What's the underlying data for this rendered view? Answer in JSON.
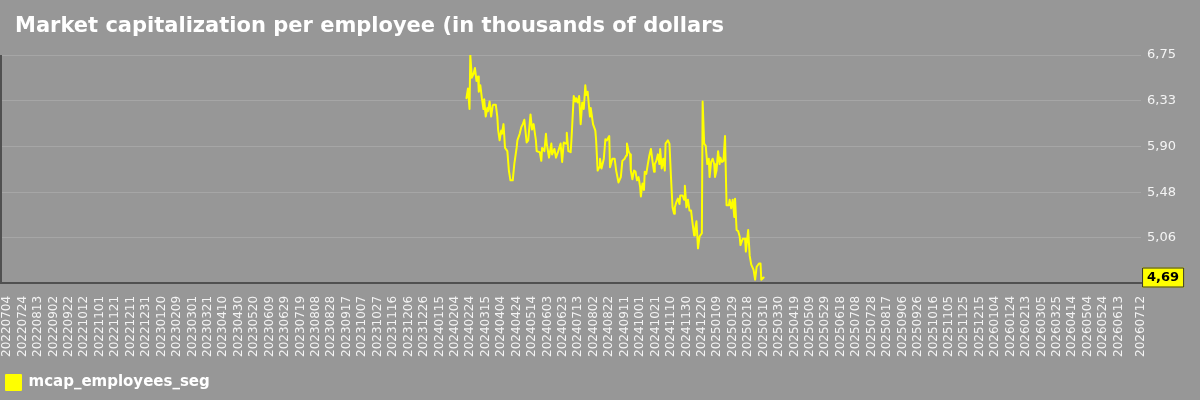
{
  "chart_data": {
    "type": "line",
    "title": "Market capitalization per employee (in thousands of dollars",
    "series": [
      {
        "name": "mcap_employees_seg",
        "color": "#ffff00",
        "x": [
          "2024-02-19",
          "2024-02-21",
          "2024-02-23",
          "2024-02-24",
          "2024-02-26",
          "2024-02-28",
          "2024-03-01",
          "2024-03-03",
          "2024-03-05",
          "2024-03-06",
          "2024-03-08",
          "2024-03-10",
          "2024-03-12",
          "2024-03-13",
          "2024-03-15",
          "2024-03-17",
          "2024-03-18",
          "2024-03-20",
          "2024-03-22",
          "2024-03-24",
          "2024-03-25",
          "2024-03-28",
          "2024-03-30",
          "2024-03-31",
          "2024-04-02",
          "2024-04-04",
          "2024-04-05",
          "2024-04-07",
          "2024-04-09",
          "2024-04-12",
          "2024-04-14",
          "2024-04-16",
          "2024-04-19",
          "2024-04-21",
          "2024-04-24",
          "2024-04-25",
          "2024-04-28",
          "2024-04-30",
          "2024-05-02",
          "2024-05-04",
          "2024-05-07",
          "2024-05-09",
          "2024-05-12",
          "2024-05-14",
          "2024-05-16",
          "2024-05-19",
          "2024-05-20",
          "2024-05-24",
          "2024-05-26",
          "2024-05-27",
          "2024-05-30",
          "2024-06-01",
          "2024-06-02",
          "2024-06-05",
          "2024-06-08",
          "2024-06-09",
          "2024-06-12",
          "2024-06-14",
          "2024-06-17",
          "2024-06-20",
          "2024-06-22",
          "2024-06-24",
          "2024-06-27",
          "2024-06-28",
          "2024-06-30",
          "2024-07-03",
          "2024-07-04",
          "2024-07-07",
          "2024-07-09",
          "2024-07-10",
          "2024-07-12",
          "2024-07-14",
          "2024-07-16",
          "2024-07-18",
          "2024-07-20",
          "2024-07-22",
          "2024-07-23",
          "2024-07-25",
          "2024-07-28",
          "2024-07-29",
          "2024-08-01",
          "2024-08-04",
          "2024-08-05",
          "2024-08-07",
          "2024-08-09",
          "2024-08-10",
          "2024-08-12",
          "2024-08-15",
          "2024-08-17",
          "2024-08-19",
          "2024-08-22",
          "2024-08-23",
          "2024-08-26",
          "2024-08-29",
          "2024-08-31",
          "2024-09-03",
          "2024-09-06",
          "2024-09-08",
          "2024-09-11",
          "2024-09-13",
          "2024-09-14",
          "2024-09-16",
          "2024-09-18",
          "2024-09-19",
          "2024-09-21",
          "2024-09-23",
          "2024-09-25",
          "2024-09-27",
          "2024-09-29",
          "2024-10-01",
          "2024-10-02",
          "2024-10-04",
          "2024-10-06",
          "2024-10-07",
          "2024-10-09",
          "2024-10-11",
          "2024-10-13",
          "2024-10-15",
          "2024-10-17",
          "2024-10-19",
          "2024-10-20",
          "2024-10-22",
          "2024-10-24",
          "2024-10-26",
          "2024-10-27",
          "2024-10-29",
          "2024-10-31",
          "2024-11-02",
          "2024-11-03",
          "2024-11-06",
          "2024-11-08",
          "2024-11-10",
          "2024-11-12",
          "2024-11-14",
          "2024-11-15",
          "2024-11-17",
          "2024-11-19",
          "2024-11-21",
          "2024-11-22",
          "2024-11-25",
          "2024-11-27",
          "2024-11-28",
          "2024-11-30",
          "2024-12-02",
          "2024-12-04",
          "2024-12-06",
          "2024-12-08",
          "2024-12-10",
          "2024-12-11",
          "2024-12-13",
          "2024-12-15",
          "2024-12-17",
          "2024-12-18",
          "2024-12-20",
          "2024-12-21",
          "2024-12-23",
          "2024-12-25",
          "2024-12-27",
          "2024-12-29",
          "2024-12-30",
          "2025-01-01",
          "2025-01-03",
          "2025-01-05",
          "2025-01-06",
          "2025-01-08",
          "2025-01-10",
          "2025-01-12",
          "2025-01-13",
          "2025-01-15",
          "2025-01-17",
          "2025-01-19",
          "2025-01-21",
          "2025-01-24",
          "2025-01-25",
          "2025-01-27",
          "2025-01-29",
          "2025-01-31",
          "2025-02-01",
          "2025-02-03",
          "2025-02-05",
          "2025-02-07",
          "2025-02-08",
          "2025-02-11",
          "2025-02-14",
          "2025-02-15",
          "2025-02-18",
          "2025-02-20",
          "2025-02-22",
          "2025-02-25",
          "2025-02-27",
          "2025-03-01",
          "2025-03-04",
          "2025-03-06",
          "2025-03-07",
          "2025-03-10"
        ],
        "values": [
          6.35,
          6.44,
          6.25,
          6.75,
          6.54,
          6.57,
          6.63,
          6.51,
          6.55,
          6.41,
          6.47,
          6.35,
          6.25,
          6.34,
          6.18,
          6.26,
          6.23,
          6.32,
          6.18,
          6.28,
          6.29,
          6.29,
          6.18,
          6.06,
          5.96,
          6.05,
          6.02,
          6.11,
          5.89,
          5.86,
          5.68,
          5.59,
          5.59,
          5.74,
          5.89,
          5.96,
          6.02,
          6.08,
          6.11,
          6.15,
          5.94,
          5.96,
          6.2,
          6.06,
          6.11,
          5.96,
          5.86,
          5.85,
          5.77,
          5.89,
          5.86,
          6.02,
          5.93,
          5.8,
          5.93,
          5.83,
          5.88,
          5.8,
          5.86,
          5.93,
          5.76,
          5.94,
          5.93,
          6.03,
          5.86,
          5.85,
          5.96,
          6.37,
          6.32,
          6.35,
          6.31,
          6.37,
          6.11,
          6.31,
          6.25,
          6.47,
          6.38,
          6.41,
          6.18,
          6.26,
          6.11,
          6.05,
          5.96,
          5.68,
          5.71,
          5.79,
          5.7,
          5.79,
          5.97,
          5.96,
          6.0,
          5.71,
          5.79,
          5.79,
          5.68,
          5.57,
          5.62,
          5.77,
          5.79,
          5.82,
          5.93,
          5.86,
          5.83,
          5.68,
          5.6,
          5.68,
          5.67,
          5.59,
          5.62,
          5.53,
          5.44,
          5.56,
          5.5,
          5.67,
          5.65,
          5.74,
          5.82,
          5.88,
          5.77,
          5.67,
          5.74,
          5.77,
          5.83,
          5.74,
          5.88,
          5.7,
          5.79,
          5.68,
          5.93,
          5.96,
          5.93,
          5.62,
          5.34,
          5.28,
          5.34,
          5.39,
          5.42,
          5.37,
          5.45,
          5.45,
          5.41,
          5.54,
          5.34,
          5.41,
          5.31,
          5.31,
          5.19,
          5.08,
          5.13,
          5.21,
          4.96,
          5.07,
          5.08,
          5.1,
          6.32,
          5.93,
          5.91,
          5.74,
          5.79,
          5.62,
          5.76,
          5.79,
          5.74,
          5.62,
          5.68,
          5.86,
          5.74,
          5.8,
          5.76,
          5.77,
          6.0,
          5.36,
          5.36,
          5.41,
          5.33,
          5.41,
          5.25,
          5.42,
          5.13,
          5.12,
          5.07,
          4.99,
          5.05,
          5.05,
          4.93,
          5.13,
          4.89,
          4.81,
          4.76,
          4.67,
          4.79,
          4.82,
          4.82,
          4.67,
          4.69
        ]
      }
    ],
    "xlim": [
      "2022-06-26",
      "2026-07-12"
    ],
    "xticks": [
      {
        "value": "2022-07-04",
        "label": "20220704"
      },
      {
        "value": "2022-07-24",
        "label": "20220724"
      },
      {
        "value": "2022-08-13",
        "label": "20220813"
      },
      {
        "value": "2022-09-02",
        "label": "20220902"
      },
      {
        "value": "2022-09-22",
        "label": "20220922"
      },
      {
        "value": "2022-10-12",
        "label": "20221012"
      },
      {
        "value": "2022-11-01",
        "label": "20221101"
      },
      {
        "value": "2022-11-21",
        "label": "20221121"
      },
      {
        "value": "2022-12-11",
        "label": "20221211"
      },
      {
        "value": "2022-12-31",
        "label": "20221231"
      },
      {
        "value": "2023-01-20",
        "label": "20230120"
      },
      {
        "value": "2023-02-09",
        "label": "20230209"
      },
      {
        "value": "2023-03-01",
        "label": "20230301"
      },
      {
        "value": "2023-03-21",
        "label": "20230321"
      },
      {
        "value": "2023-04-10",
        "label": "20230410"
      },
      {
        "value": "2023-04-30",
        "label": "20230430"
      },
      {
        "value": "2023-05-20",
        "label": "20230520"
      },
      {
        "value": "2023-06-09",
        "label": "20230609"
      },
      {
        "value": "2023-06-29",
        "label": "20230629"
      },
      {
        "value": "2023-07-19",
        "label": "20230719"
      },
      {
        "value": "2023-08-08",
        "label": "20230808"
      },
      {
        "value": "2023-08-28",
        "label": "20230828"
      },
      {
        "value": "2023-09-17",
        "label": "20230917"
      },
      {
        "value": "2023-10-07",
        "label": "20231007"
      },
      {
        "value": "2023-10-27",
        "label": "20231027"
      },
      {
        "value": "2023-11-16",
        "label": "20231116"
      },
      {
        "value": "2023-12-06",
        "label": "20231206"
      },
      {
        "value": "2023-12-26",
        "label": "20231226"
      },
      {
        "value": "2024-01-15",
        "label": "20240115"
      },
      {
        "value": "2024-02-04",
        "label": "20240204"
      },
      {
        "value": "2024-02-24",
        "label": "20240224"
      },
      {
        "value": "2024-03-15",
        "label": "20240315"
      },
      {
        "value": "2024-04-04",
        "label": "20240404"
      },
      {
        "value": "2024-04-24",
        "label": "20240424"
      },
      {
        "value": "2024-05-14",
        "label": "20240514"
      },
      {
        "value": "2024-06-03",
        "label": "20240603"
      },
      {
        "value": "2024-06-23",
        "label": "20240623"
      },
      {
        "value": "2024-07-13",
        "label": "20240713"
      },
      {
        "value": "2024-08-02",
        "label": "20240802"
      },
      {
        "value": "2024-08-22",
        "label": "20240822"
      },
      {
        "value": "2024-09-11",
        "label": "20240911"
      },
      {
        "value": "2024-10-01",
        "label": "20241001"
      },
      {
        "value": "2024-10-21",
        "label": "20241021"
      },
      {
        "value": "2024-11-10",
        "label": "20241110"
      },
      {
        "value": "2024-11-30",
        "label": "20241130"
      },
      {
        "value": "2024-12-20",
        "label": "20241220"
      },
      {
        "value": "2025-01-09",
        "label": "20250109"
      },
      {
        "value": "2025-01-29",
        "label": "20250129"
      },
      {
        "value": "2025-02-18",
        "label": "20250218"
      },
      {
        "value": "2025-03-10",
        "label": "20250310"
      },
      {
        "value": "2025-03-30",
        "label": "20250330"
      },
      {
        "value": "2025-04-19",
        "label": "20250419"
      },
      {
        "value": "2025-05-09",
        "label": "20250509"
      },
      {
        "value": "2025-05-29",
        "label": "20250529"
      },
      {
        "value": "2025-06-18",
        "label": "20250618"
      },
      {
        "value": "2025-07-08",
        "label": "20250708"
      },
      {
        "value": "2025-07-28",
        "label": "20250728"
      },
      {
        "value": "2025-08-17",
        "label": "20250817"
      },
      {
        "value": "2025-09-06",
        "label": "20250906"
      },
      {
        "value": "2025-09-26",
        "label": "20250926"
      },
      {
        "value": "2025-10-16",
        "label": "20251016"
      },
      {
        "value": "2025-11-05",
        "label": "20251105"
      },
      {
        "value": "2025-11-25",
        "label": "20251125"
      },
      {
        "value": "2025-12-15",
        "label": "20251215"
      },
      {
        "value": "2026-01-04",
        "label": "20260104"
      },
      {
        "value": "2026-01-24",
        "label": "20260124"
      },
      {
        "value": "2026-02-13",
        "label": "20260213"
      },
      {
        "value": "2026-03-05",
        "label": "20260305"
      },
      {
        "value": "2026-03-25",
        "label": "20260325"
      },
      {
        "value": "2026-04-14",
        "label": "20260414"
      },
      {
        "value": "2026-05-04",
        "label": "20260504"
      },
      {
        "value": "2026-05-24",
        "label": "20260524"
      },
      {
        "value": "2026-06-13",
        "label": "20260613"
      },
      {
        "value": "2026-07-12",
        "label": "20260712"
      }
    ],
    "ylim": [
      4.64,
      6.75
    ],
    "yticks": [
      {
        "value": 5.06,
        "label": "5,06"
      },
      {
        "value": 5.48,
        "label": "5,48"
      },
      {
        "value": 5.9,
        "label": "5,90"
      },
      {
        "value": 6.33,
        "label": "6,33"
      },
      {
        "value": 6.75,
        "label": "6,75"
      }
    ],
    "grid": "y",
    "legend": "bottom left",
    "marker": "none",
    "line_style": "solid",
    "annotations": [
      {
        "text": "4,69",
        "y": 4.69
      }
    ]
  }
}
